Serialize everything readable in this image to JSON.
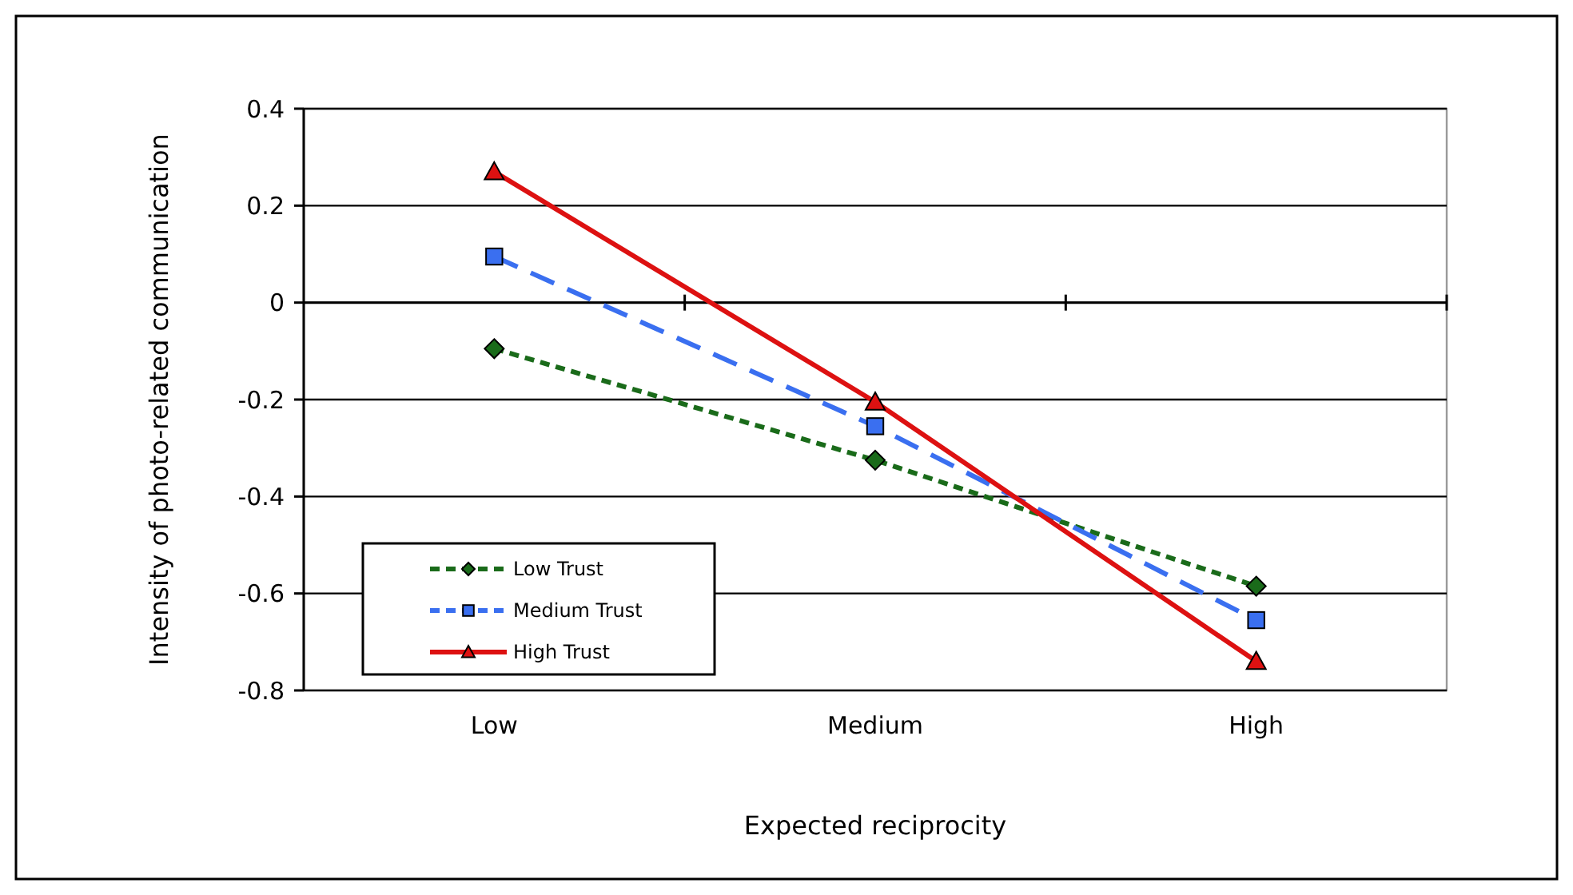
{
  "chart_data": {
    "type": "line",
    "xlabel": "Expected reciprocity",
    "ylabel": "Intensity of photo-related communication",
    "categories": [
      "Low",
      "Medium",
      "High"
    ],
    "ylim": [
      -0.8,
      0.4
    ],
    "yticks": [
      -0.8,
      -0.6,
      -0.4,
      -0.2,
      0,
      0.2,
      0.4
    ],
    "grid": "y",
    "legend": "bottom left",
    "series": [
      {
        "name": "Low Trust",
        "color": "#1a6b1a",
        "marker": "diamond",
        "line_style": "dotted",
        "values": [
          -0.095,
          -0.325,
          -0.585
        ]
      },
      {
        "name": "Medium Trust",
        "color": "#3a6ff0",
        "marker": "square",
        "line_style": "dashed",
        "values": [
          0.095,
          -0.255,
          -0.655
        ]
      },
      {
        "name": "High Trust",
        "color": "#dd1111",
        "marker": "triangle",
        "line_style": "solid",
        "values": [
          0.27,
          -0.205,
          -0.74
        ]
      }
    ]
  }
}
